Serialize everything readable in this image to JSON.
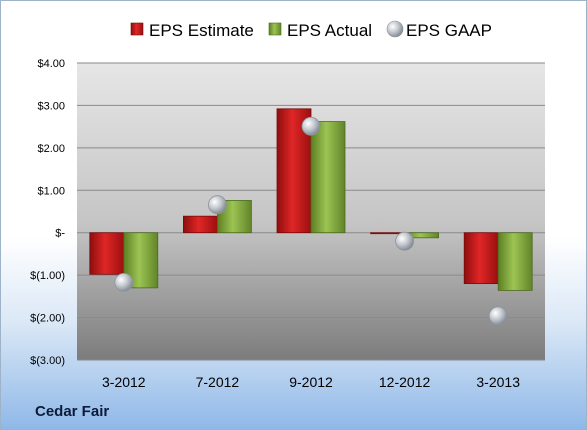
{
  "company": "Cedar Fair",
  "chart_data": {
    "type": "bar",
    "categories": [
      "3-2012",
      "7-2012",
      "9-2012",
      "12-2012",
      "3-2013"
    ],
    "series": [
      {
        "name": "EPS Estimate",
        "type": "bar",
        "values": [
          -0.98,
          0.39,
          2.92,
          -0.02,
          -1.2
        ],
        "color": "#cc1f1f"
      },
      {
        "name": "EPS Actual",
        "type": "bar",
        "values": [
          -1.3,
          0.76,
          2.62,
          -0.12,
          -1.36
        ],
        "color": "#7fa63a"
      },
      {
        "name": "EPS GAAP",
        "type": "scatter",
        "values": [
          -1.17,
          0.66,
          2.51,
          -0.2,
          -1.96
        ],
        "color": "#b9c0c8"
      }
    ],
    "ylim": [
      -3,
      4
    ],
    "yticks": [
      "$(3.00)",
      "$(2.00)",
      "$(1.00)",
      "$-",
      "$1.00",
      "$2.00",
      "$3.00",
      "$4.00"
    ],
    "grid": true,
    "legend_position": "top"
  }
}
